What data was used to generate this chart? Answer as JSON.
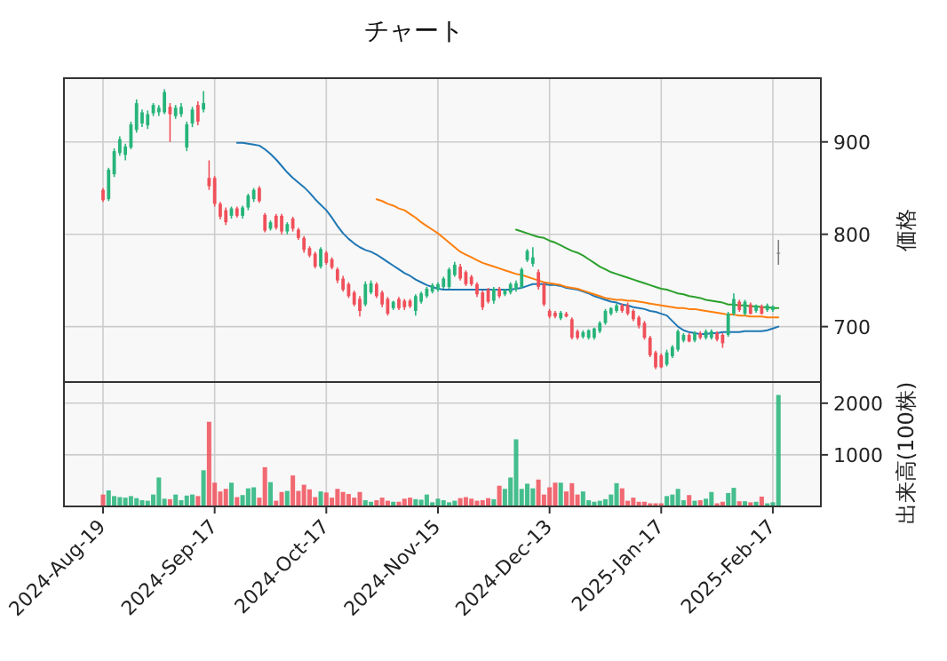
{
  "chart_data": [
    {
      "type": "candlestick",
      "title": "チャート",
      "ylabel": "価格",
      "grid": true,
      "tick_labels": "y",
      "ylim": [
        640,
        969
      ],
      "yticks": [
        700,
        800,
        900
      ],
      "categories": [
        null,
        null,
        null,
        null,
        null,
        null,
        null,
        null,
        null,
        null,
        null,
        null,
        null,
        null,
        null,
        null,
        null,
        null,
        null,
        null,
        null,
        null,
        null,
        null,
        null,
        null,
        null,
        null,
        null,
        null,
        null,
        null,
        null,
        null,
        null,
        null,
        null,
        null,
        null,
        null,
        null,
        null,
        null,
        null,
        null,
        null,
        null,
        null,
        null,
        null,
        null,
        null,
        null,
        null,
        null,
        null,
        null,
        null,
        null,
        null,
        null,
        null,
        null,
        null,
        null,
        null,
        null,
        null,
        null,
        null,
        null,
        null,
        null,
        null,
        null,
        null,
        null,
        null,
        null,
        null,
        null,
        null,
        null,
        null,
        null,
        null,
        null,
        null,
        null,
        null,
        null,
        null,
        null,
        null,
        null,
        null,
        null,
        null,
        null,
        null,
        null,
        null,
        null,
        null,
        null,
        null,
        null,
        null,
        null,
        null,
        null,
        null,
        null,
        null,
        null,
        null,
        null,
        null,
        null,
        null,
        null,
        null
      ],
      "ohlc": [
        [
          848,
          850,
          835,
          837
        ],
        [
          838,
          872,
          836,
          870
        ],
        [
          865,
          893,
          862,
          890
        ],
        [
          888,
          906,
          885,
          903
        ],
        [
          886,
          898,
          880,
          895
        ],
        [
          894,
          922,
          892,
          919
        ],
        [
          913,
          946,
          910,
          942
        ],
        [
          920,
          935,
          916,
          932
        ],
        [
          918,
          934,
          914,
          930
        ],
        [
          931,
          942,
          928,
          940
        ],
        [
          932,
          940,
          928,
          937
        ],
        [
          932,
          957,
          930,
          954
        ],
        [
          938,
          942,
          900,
          930
        ],
        [
          928,
          940,
          925,
          937
        ],
        [
          930,
          942,
          927,
          938
        ],
        [
          894,
          922,
          890,
          919
        ],
        [
          920,
          938,
          916,
          935
        ],
        [
          940,
          944,
          918,
          922
        ],
        [
          935,
          955,
          932,
          942
        ],
        [
          861,
          880,
          848,
          852
        ],
        [
          861,
          863,
          830,
          833
        ],
        [
          833,
          835,
          816,
          819
        ],
        [
          826,
          829,
          810,
          813
        ],
        [
          820,
          830,
          817,
          828
        ],
        [
          828,
          830,
          818,
          820
        ],
        [
          820,
          831,
          817,
          829
        ],
        [
          829,
          844,
          826,
          842
        ],
        [
          838,
          850,
          835,
          848
        ],
        [
          850,
          852,
          834,
          836
        ],
        [
          821,
          823,
          802,
          804
        ],
        [
          806,
          815,
          804,
          813
        ],
        [
          820,
          822,
          805,
          807
        ],
        [
          820,
          822,
          800,
          803
        ],
        [
          803,
          813,
          800,
          811
        ],
        [
          817,
          819,
          803,
          806
        ],
        [
          805,
          807,
          794,
          796
        ],
        [
          796,
          798,
          780,
          783
        ],
        [
          785,
          787,
          775,
          777
        ],
        [
          779,
          781,
          763,
          765
        ],
        [
          765,
          786,
          763,
          784
        ],
        [
          780,
          782,
          767,
          769
        ],
        [
          773,
          775,
          762,
          764
        ],
        [
          762,
          764,
          747,
          750
        ],
        [
          752,
          755,
          738,
          740
        ],
        [
          746,
          748,
          731,
          733
        ],
        [
          737,
          739,
          722,
          724
        ],
        [
          730,
          733,
          711,
          717
        ],
        [
          724,
          749,
          722,
          746
        ],
        [
          737,
          750,
          735,
          747
        ],
        [
          746,
          748,
          731,
          733
        ],
        [
          737,
          739,
          721,
          724
        ],
        [
          730,
          732,
          712,
          714
        ],
        [
          720,
          728,
          718,
          727
        ],
        [
          730,
          732,
          718,
          720
        ],
        [
          728,
          730,
          718,
          721
        ],
        [
          728,
          730,
          720,
          722
        ],
        [
          717,
          735,
          712,
          733
        ],
        [
          727,
          738,
          725,
          736
        ],
        [
          733,
          743,
          731,
          741
        ],
        [
          738,
          747,
          736,
          745
        ],
        [
          740,
          748,
          738,
          746
        ],
        [
          743,
          754,
          741,
          752
        ],
        [
          743,
          764,
          741,
          762
        ],
        [
          756,
          770,
          754,
          767
        ],
        [
          765,
          768,
          750,
          752
        ],
        [
          759,
          761,
          744,
          746
        ],
        [
          754,
          756,
          744,
          746
        ],
        [
          746,
          748,
          732,
          735
        ],
        [
          737,
          739,
          718,
          721
        ],
        [
          740,
          742,
          725,
          727
        ],
        [
          728,
          743,
          725,
          741
        ],
        [
          741,
          743,
          731,
          733
        ],
        [
          735,
          741,
          733,
          739
        ],
        [
          737,
          748,
          735,
          746
        ],
        [
          740,
          750,
          738,
          747
        ],
        [
          743,
          764,
          741,
          762
        ],
        [
          772,
          784,
          770,
          782
        ],
        [
          768,
          786,
          765,
          775
        ],
        [
          759,
          762,
          740,
          743
        ],
        [
          746,
          748,
          722,
          724
        ],
        [
          717,
          719,
          709,
          711
        ],
        [
          715,
          717,
          709,
          711
        ],
        [
          709,
          717,
          707,
          715
        ],
        [
          714,
          716,
          710,
          711
        ],
        [
          708,
          710,
          686,
          688
        ],
        [
          695,
          697,
          686,
          688
        ],
        [
          689,
          696,
          687,
          694
        ],
        [
          688,
          697,
          686,
          696
        ],
        [
          688,
          699,
          686,
          698
        ],
        [
          695,
          706,
          693,
          704
        ],
        [
          704,
          719,
          702,
          717
        ],
        [
          714,
          721,
          712,
          720
        ],
        [
          717,
          725,
          715,
          723
        ],
        [
          723,
          725,
          715,
          717
        ],
        [
          723,
          726,
          712,
          714
        ],
        [
          717,
          719,
          706,
          708
        ],
        [
          710,
          712,
          698,
          701
        ],
        [
          704,
          706,
          686,
          688
        ],
        [
          688,
          690,
          667,
          669
        ],
        [
          672,
          674,
          654,
          656
        ],
        [
          669,
          671,
          655,
          656
        ],
        [
          659,
          675,
          657,
          672
        ],
        [
          668,
          680,
          666,
          678
        ],
        [
          675,
          697,
          673,
          695
        ],
        [
          685,
          693,
          683,
          691
        ],
        [
          691,
          693,
          683,
          684
        ],
        [
          685,
          695,
          683,
          693
        ],
        [
          693,
          695,
          686,
          688
        ],
        [
          688,
          697,
          686,
          695
        ],
        [
          688,
          697,
          686,
          695
        ],
        [
          693,
          695,
          684,
          686
        ],
        [
          691,
          693,
          677,
          682
        ],
        [
          691,
          716,
          689,
          714
        ],
        [
          714,
          736,
          712,
          730
        ],
        [
          727,
          729,
          716,
          718
        ],
        [
          714,
          729,
          712,
          727
        ],
        [
          724,
          726,
          713,
          714
        ],
        [
          717,
          724,
          715,
          723
        ],
        [
          722,
          724,
          713,
          714
        ],
        [
          718,
          725,
          716,
          723
        ],
        [
          718,
          723,
          716,
          722
        ],
        [
          780,
          794,
          767,
          780
        ]
      ],
      "colors": [
        "#f0505a",
        "#26b47a",
        "#26b47a",
        "#26b47a",
        "#26b47a",
        "#26b47a",
        "#26b47a",
        "#26b47a",
        "#26b47a",
        "#26b47a",
        "#26b47a",
        "#26b47a",
        "#f0505a",
        "#26b47a",
        "#26b47a",
        "#26b47a",
        "#26b47a",
        "#f0505a",
        "#26b47a",
        "#f0505a",
        "#f0505a",
        "#f0505a",
        "#f0505a",
        "#26b47a",
        "#f0505a",
        "#26b47a",
        "#26b47a",
        "#26b47a",
        "#f0505a",
        "#f0505a",
        "#26b47a",
        "#f0505a",
        "#f0505a",
        "#26b47a",
        "#f0505a",
        "#f0505a",
        "#f0505a",
        "#f0505a",
        "#f0505a",
        "#26b47a",
        "#f0505a",
        "#f0505a",
        "#f0505a",
        "#f0505a",
        "#f0505a",
        "#f0505a",
        "#f0505a",
        "#26b47a",
        "#26b47a",
        "#f0505a",
        "#f0505a",
        "#f0505a",
        "#26b47a",
        "#f0505a",
        "#f0505a",
        "#f0505a",
        "#26b47a",
        "#26b47a",
        "#26b47a",
        "#26b47a",
        "#26b47a",
        "#26b47a",
        "#26b47a",
        "#26b47a",
        "#f0505a",
        "#f0505a",
        "#f0505a",
        "#f0505a",
        "#f0505a",
        "#f0505a",
        "#26b47a",
        "#f0505a",
        "#26b47a",
        "#26b47a",
        "#26b47a",
        "#26b47a",
        "#26b47a",
        "#26b47a",
        "#f0505a",
        "#f0505a",
        "#f0505a",
        "#f0505a",
        "#26b47a",
        "#f0505a",
        "#f0505a",
        "#f0505a",
        "#26b47a",
        "#26b47a",
        "#26b47a",
        "#26b47a",
        "#26b47a",
        "#26b47a",
        "#26b47a",
        "#f0505a",
        "#f0505a",
        "#f0505a",
        "#f0505a",
        "#f0505a",
        "#f0505a",
        "#f0505a",
        "#f0505a",
        "#26b47a",
        "#26b47a",
        "#26b47a",
        "#26b47a",
        "#f0505a",
        "#26b47a",
        "#f0505a",
        "#26b47a",
        "#26b47a",
        "#f0505a",
        "#f0505a",
        "#26b47a",
        "#26b47a",
        "#f0505a",
        "#26b47a",
        "#f0505a",
        "#26b47a",
        "#f0505a",
        "#26b47a",
        "#26b47a",
        "#808080"
      ],
      "series": [
        {
          "type": "line",
          "color": "#1f77b4",
          "values": [
            null,
            null,
            null,
            null,
            null,
            null,
            null,
            null,
            null,
            null,
            null,
            null,
            null,
            null,
            null,
            null,
            null,
            null,
            null,
            null,
            null,
            null,
            null,
            null,
            899,
            899,
            898,
            897,
            896,
            892,
            887,
            881,
            874,
            867,
            861,
            856,
            851,
            845,
            838,
            832,
            826,
            818,
            809,
            801,
            795,
            790,
            786,
            783,
            781,
            778,
            774,
            770,
            766,
            762,
            758,
            755,
            751,
            748,
            745,
            743,
            741,
            740,
            740,
            740,
            740,
            740,
            740,
            740,
            740,
            740,
            740,
            740,
            740,
            740,
            741,
            742,
            744,
            746,
            746,
            746,
            745,
            745,
            744,
            742,
            741,
            740,
            738,
            736,
            733,
            731,
            729,
            727,
            726,
            724,
            723,
            721,
            720,
            719,
            717,
            716,
            714,
            712,
            706,
            700,
            696,
            694,
            693,
            692,
            692,
            693,
            693,
            694,
            694,
            694,
            694,
            695,
            695,
            695,
            695,
            696,
            698,
            700
          ]
        },
        {
          "type": "line",
          "color": "#ff7f0e",
          "values": [
            null,
            null,
            null,
            null,
            null,
            null,
            null,
            null,
            null,
            null,
            null,
            null,
            null,
            null,
            null,
            null,
            null,
            null,
            null,
            null,
            null,
            null,
            null,
            null,
            null,
            null,
            null,
            null,
            null,
            null,
            null,
            null,
            null,
            null,
            null,
            null,
            null,
            null,
            null,
            null,
            null,
            null,
            null,
            null,
            null,
            null,
            null,
            null,
            null,
            838,
            836,
            833,
            831,
            828,
            826,
            822,
            818,
            813,
            809,
            805,
            801,
            796,
            791,
            786,
            781,
            778,
            775,
            772,
            769,
            767,
            765,
            763,
            761,
            759,
            757,
            756,
            754,
            752,
            750,
            748,
            747,
            746,
            745,
            743,
            742,
            741,
            739,
            737,
            735,
            733,
            731,
            730,
            729,
            729,
            728,
            728,
            727,
            726,
            725,
            724,
            723,
            722,
            721,
            720,
            720,
            719,
            719,
            718,
            717,
            716,
            715,
            714,
            713,
            713,
            712,
            712,
            711,
            711,
            711,
            710,
            710,
            710
          ]
        },
        {
          "type": "line",
          "color": "#2ca02c",
          "values": [
            null,
            null,
            null,
            null,
            null,
            null,
            null,
            null,
            null,
            null,
            null,
            null,
            null,
            null,
            null,
            null,
            null,
            null,
            null,
            null,
            null,
            null,
            null,
            null,
            null,
            null,
            null,
            null,
            null,
            null,
            null,
            null,
            null,
            null,
            null,
            null,
            null,
            null,
            null,
            null,
            null,
            null,
            null,
            null,
            null,
            null,
            null,
            null,
            null,
            null,
            null,
            null,
            null,
            null,
            null,
            null,
            null,
            null,
            null,
            null,
            null,
            null,
            null,
            null,
            null,
            null,
            null,
            null,
            null,
            null,
            null,
            null,
            null,
            null,
            805,
            803,
            801,
            799,
            797,
            796,
            793,
            791,
            788,
            785,
            782,
            780,
            777,
            773,
            769,
            765,
            762,
            759,
            757,
            755,
            753,
            751,
            749,
            747,
            745,
            743,
            741,
            740,
            738,
            736,
            735,
            733,
            732,
            731,
            729,
            728,
            727,
            726,
            724,
            724,
            723,
            723,
            722,
            722,
            721,
            721,
            720,
            720
          ]
        }
      ]
    },
    {
      "type": "bar",
      "ylabel": "出来高(100株)",
      "grid": true,
      "ylim": [
        0,
        2410
      ],
      "yticks": [
        1000,
        2000
      ],
      "categories": [
        "2024-Aug-19",
        null,
        null,
        null,
        null,
        null,
        null,
        null,
        null,
        null,
        null,
        null,
        null,
        null,
        null,
        null,
        null,
        null,
        null,
        null,
        "2024-Sep-17",
        null,
        null,
        null,
        null,
        null,
        null,
        null,
        null,
        null,
        null,
        null,
        null,
        null,
        null,
        null,
        null,
        null,
        null,
        null,
        "2024-Oct-17",
        null,
        null,
        null,
        null,
        null,
        null,
        null,
        null,
        null,
        null,
        null,
        null,
        null,
        null,
        null,
        null,
        null,
        null,
        null,
        "2024-Nov-15",
        null,
        null,
        null,
        null,
        null,
        null,
        null,
        null,
        null,
        null,
        null,
        null,
        null,
        null,
        null,
        null,
        null,
        null,
        null,
        "2024-Dec-13",
        null,
        null,
        null,
        null,
        null,
        null,
        null,
        null,
        null,
        null,
        null,
        null,
        null,
        null,
        null,
        null,
        null,
        null,
        null,
        "2025-Jan-17",
        null,
        null,
        null,
        null,
        null,
        null,
        null,
        null,
        null,
        null,
        null,
        null,
        null,
        null,
        null,
        null,
        null,
        null,
        null,
        "2025-Feb-17",
        null
      ],
      "values": [
        230,
        310,
        200,
        180,
        170,
        200,
        160,
        120,
        110,
        230,
        560,
        150,
        140,
        230,
        120,
        210,
        230,
        200,
        700,
        1640,
        460,
        290,
        340,
        460,
        180,
        220,
        350,
        370,
        170,
        760,
        470,
        110,
        280,
        300,
        600,
        300,
        420,
        330,
        180,
        290,
        270,
        170,
        340,
        280,
        240,
        170,
        280,
        120,
        90,
        120,
        170,
        110,
        90,
        90,
        150,
        170,
        140,
        130,
        230,
        80,
        150,
        120,
        80,
        110,
        160,
        180,
        150,
        110,
        120,
        160,
        140,
        400,
        340,
        560,
        1300,
        340,
        440,
        350,
        520,
        230,
        370,
        460,
        460,
        290,
        450,
        230,
        290,
        120,
        90,
        110,
        140,
        230,
        450,
        350,
        110,
        170,
        90,
        90,
        60,
        60,
        60,
        200,
        230,
        340,
        120,
        220,
        110,
        120,
        150,
        280,
        60,
        90,
        260,
        360,
        100,
        100,
        80,
        90,
        190,
        60,
        80,
        2160
      ],
      "colors": [
        "#f0505a",
        "#26b47a",
        "#26b47a",
        "#26b47a",
        "#26b47a",
        "#26b47a",
        "#26b47a",
        "#26b47a",
        "#26b47a",
        "#26b47a",
        "#26b47a",
        "#26b47a",
        "#f0505a",
        "#26b47a",
        "#26b47a",
        "#26b47a",
        "#26b47a",
        "#f0505a",
        "#26b47a",
        "#f0505a",
        "#f0505a",
        "#f0505a",
        "#f0505a",
        "#26b47a",
        "#f0505a",
        "#26b47a",
        "#26b47a",
        "#26b47a",
        "#f0505a",
        "#f0505a",
        "#26b47a",
        "#f0505a",
        "#f0505a",
        "#26b47a",
        "#f0505a",
        "#f0505a",
        "#f0505a",
        "#f0505a",
        "#f0505a",
        "#26b47a",
        "#f0505a",
        "#f0505a",
        "#f0505a",
        "#f0505a",
        "#f0505a",
        "#f0505a",
        "#f0505a",
        "#26b47a",
        "#26b47a",
        "#f0505a",
        "#f0505a",
        "#f0505a",
        "#26b47a",
        "#f0505a",
        "#f0505a",
        "#f0505a",
        "#26b47a",
        "#26b47a",
        "#26b47a",
        "#26b47a",
        "#26b47a",
        "#26b47a",
        "#26b47a",
        "#26b47a",
        "#f0505a",
        "#f0505a",
        "#f0505a",
        "#f0505a",
        "#f0505a",
        "#f0505a",
        "#26b47a",
        "#f0505a",
        "#26b47a",
        "#26b47a",
        "#26b47a",
        "#26b47a",
        "#26b47a",
        "#26b47a",
        "#f0505a",
        "#f0505a",
        "#f0505a",
        "#f0505a",
        "#26b47a",
        "#f0505a",
        "#f0505a",
        "#f0505a",
        "#26b47a",
        "#26b47a",
        "#26b47a",
        "#26b47a",
        "#26b47a",
        "#26b47a",
        "#26b47a",
        "#f0505a",
        "#f0505a",
        "#f0505a",
        "#f0505a",
        "#f0505a",
        "#f0505a",
        "#f0505a",
        "#f0505a",
        "#26b47a",
        "#26b47a",
        "#26b47a",
        "#26b47a",
        "#f0505a",
        "#26b47a",
        "#f0505a",
        "#26b47a",
        "#26b47a",
        "#f0505a",
        "#f0505a",
        "#26b47a",
        "#26b47a",
        "#f0505a",
        "#26b47a",
        "#f0505a",
        "#26b47a",
        "#f0505a",
        "#26b47a",
        "#26b47a",
        "#26b47a"
      ]
    }
  ]
}
